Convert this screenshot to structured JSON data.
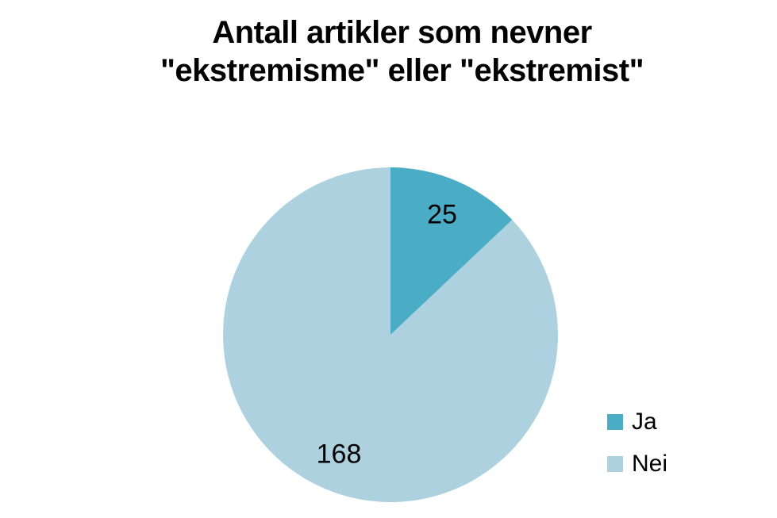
{
  "page": {
    "background_color": "#FFFFFF"
  },
  "chart_data": {
    "type": "pie",
    "title": "Antall artikler som nevner \"ekstremisme\" eller \"ekstremist\"",
    "title_lines": [
      "Antall artikler som nevner",
      "\"ekstremisme\" eller \"ekstremist\""
    ],
    "categories": [
      "Ja",
      "Nei"
    ],
    "values": [
      25,
      168
    ],
    "colors": [
      "#4BACC6",
      "#ADD1DF"
    ],
    "data_labels_shown": true,
    "legend_position": "right",
    "start_angle_deg": 0,
    "direction": "clockwise"
  }
}
